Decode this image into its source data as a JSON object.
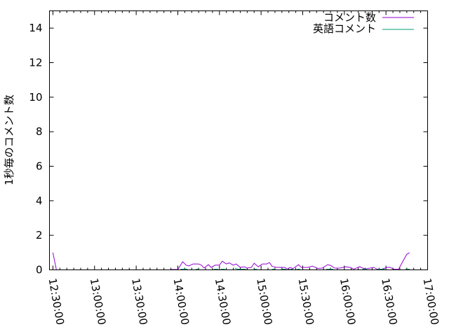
{
  "chart_data": {
    "type": "line",
    "title": "",
    "xlabel": "",
    "ylabel": "1秒毎のコメント数",
    "xlim": [
      "12:27:30",
      "17:00:00"
    ],
    "ylim": [
      0,
      15
    ],
    "x_ticks": [
      "12:30:00",
      "13:00:00",
      "13:30:00",
      "14:00:00",
      "14:30:00",
      "15:00:00",
      "15:30:00",
      "16:00:00",
      "16:30:00",
      "17:00:00"
    ],
    "y_ticks": [
      "0",
      "2",
      "4",
      "6",
      "8",
      "10",
      "12",
      "14"
    ],
    "grid": false,
    "legend_position": "top-right",
    "series": [
      {
        "name": "コメント数",
        "color": "#9400d3",
        "points": [
          [
            "12:30:00",
            1.0
          ],
          [
            "12:32:30",
            0
          ],
          null,
          [
            "13:55:00",
            0.02
          ],
          [
            "14:00:00",
            0.02
          ],
          [
            "14:03:30",
            0.47
          ],
          [
            "14:06:00",
            0.27
          ],
          [
            "14:08:00",
            0.23
          ],
          [
            "14:11:00",
            0.34
          ],
          [
            "14:15:00",
            0.34
          ],
          [
            "14:17:00",
            0.27
          ],
          [
            "14:19:00",
            0.1
          ],
          [
            "14:22:00",
            0.3
          ],
          [
            "14:24:00",
            0.14
          ],
          [
            "14:27:00",
            0.27
          ],
          [
            "14:30:00",
            0.27
          ],
          [
            "14:32:00",
            0.5
          ],
          [
            "14:35:00",
            0.34
          ],
          [
            "14:37:00",
            0.4
          ],
          [
            "14:40:00",
            0.27
          ],
          [
            "14:42:00",
            0.34
          ],
          [
            "14:45:00",
            0.14
          ],
          [
            "14:48:00",
            0.18
          ],
          [
            "14:50:00",
            0.1
          ],
          [
            "14:53:00",
            0.14
          ],
          [
            "14:55:00",
            0.38
          ],
          [
            "14:58:00",
            0.18
          ],
          [
            "15:01:00",
            0.34
          ],
          [
            "15:04:00",
            0.34
          ],
          [
            "15:06:00",
            0.42
          ],
          [
            "15:08:00",
            0.2
          ],
          [
            "15:11:00",
            0.14
          ],
          [
            "15:17:00",
            0.14
          ],
          [
            "15:19:00",
            0.05
          ],
          [
            "15:21:00",
            0.14
          ],
          [
            "15:23:00",
            0.07
          ],
          [
            "15:27:00",
            0.3
          ],
          [
            "15:29:00",
            0.14
          ],
          [
            "15:34:00",
            0.14
          ],
          [
            "15:37:00",
            0.22
          ],
          [
            "15:41:00",
            0.08
          ],
          [
            "15:44:00",
            0.1
          ],
          [
            "15:48:00",
            0.3
          ],
          [
            "15:50:00",
            0.26
          ],
          [
            "15:53:00",
            0.1
          ],
          [
            "15:57:00",
            0.1
          ],
          [
            "16:01:00",
            0.18
          ],
          [
            "16:04:00",
            0.14
          ],
          [
            "16:07:00",
            0.05
          ],
          [
            "16:11:00",
            0.18
          ],
          [
            "16:15:00",
            0.05
          ],
          [
            "16:18:00",
            0.09
          ],
          [
            "16:21:00",
            0.14
          ],
          [
            "16:24:00",
            0.03
          ],
          [
            "16:27:00",
            0.04
          ],
          [
            "16:31:00",
            0.14
          ],
          [
            "16:33:00",
            0.14
          ],
          [
            "16:36:00",
            0.03
          ],
          [
            "16:39:00",
            0.03
          ],
          [
            "16:45:00",
            0.9
          ],
          [
            "16:47:00",
            0.99
          ]
        ]
      },
      {
        "name": "英語コメント",
        "color": "#009e73",
        "points": [
          [
            "14:02:00",
            0.04
          ],
          [
            "14:07:00",
            0.04
          ],
          null,
          [
            "14:13:00",
            0.04
          ],
          [
            "14:15:00",
            0.04
          ],
          null,
          [
            "14:26:00",
            0.04
          ],
          [
            "14:29:00",
            0.04
          ],
          null,
          [
            "14:31:00",
            0.04
          ],
          [
            "14:34:00",
            0.04
          ],
          null,
          [
            "14:41:00",
            0.1
          ],
          [
            "14:43:00",
            0.04
          ],
          [
            "14:49:00",
            0.04
          ],
          null,
          [
            "14:55:00",
            0.04
          ],
          [
            "14:57:00",
            0.04
          ],
          null,
          [
            "15:08:00",
            0.04
          ],
          [
            "15:10:00",
            0.04
          ],
          null,
          [
            "15:15:00",
            0.04
          ],
          [
            "15:18:00",
            0.04
          ],
          null,
          [
            "15:21:00",
            0.04
          ],
          [
            "15:23:00",
            0.04
          ],
          null,
          [
            "15:26:00",
            0.04
          ],
          [
            "15:28:00",
            0.04
          ],
          null,
          [
            "15:47:00",
            0.04
          ],
          [
            "15:52:00",
            0.04
          ],
          null,
          [
            "16:13:00",
            0.04
          ],
          [
            "16:16:00",
            0.04
          ],
          null,
          [
            "16:24:00",
            0.04
          ],
          [
            "16:29:00",
            0.04
          ],
          null,
          [
            "16:44:00",
            0.04
          ],
          [
            "16:47:00",
            0.04
          ]
        ]
      }
    ]
  }
}
